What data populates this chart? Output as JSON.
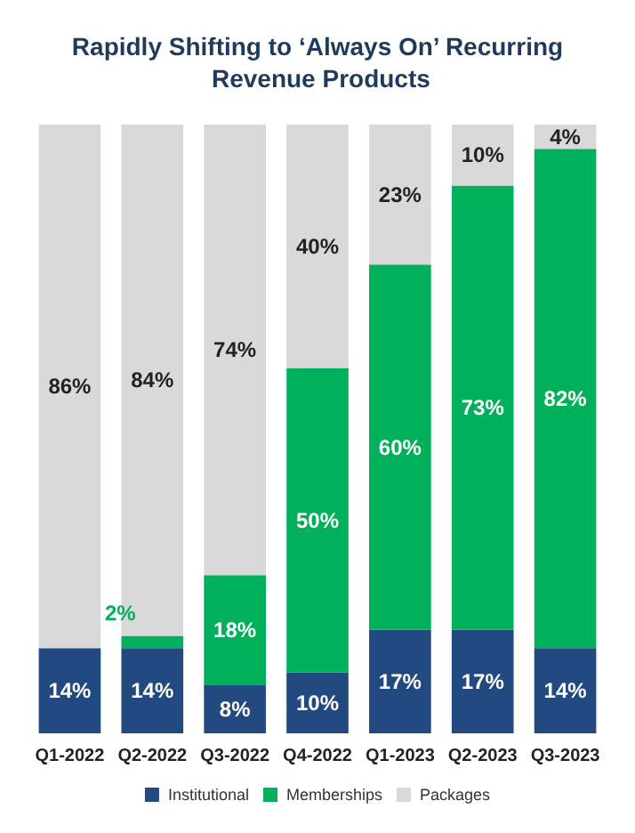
{
  "chart_data": {
    "type": "bar",
    "title": "Rapidly Shifting to ‘Always On’ Recurring Revenue Products",
    "categories": [
      "Q1-2022",
      "Q2-2022",
      "Q3-2022",
      "Q4-2022",
      "Q1-2023",
      "Q2-2023",
      "Q3-2023"
    ],
    "stacked": true,
    "legend": "bottom",
    "series": [
      {
        "name": "Institutional",
        "color": "#234a80",
        "values": [
          14,
          14,
          8,
          10,
          17,
          17,
          14
        ],
        "value_labels": [
          "14%",
          "14%",
          "8%",
          "10%",
          "17%",
          "17%",
          "14%"
        ]
      },
      {
        "name": "Memberships",
        "color": "#00b05a",
        "values": [
          null,
          2,
          18,
          50,
          60,
          73,
          82
        ],
        "value_labels": [
          null,
          "2%",
          "18%",
          "50%",
          "60%",
          "73%",
          "82%"
        ]
      },
      {
        "name": "Packages",
        "color": "#d9d9d9",
        "values": [
          86,
          84,
          74,
          40,
          23,
          10,
          4
        ],
        "value_labels": [
          "86%",
          "84%",
          "74%",
          "40%",
          "23%",
          "10%",
          "4%"
        ]
      }
    ]
  }
}
